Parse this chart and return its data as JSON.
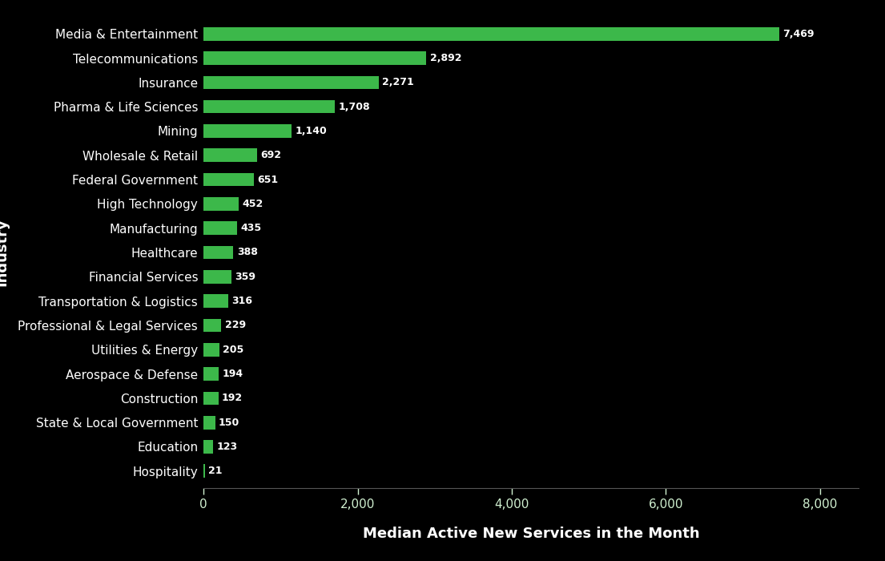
{
  "categories": [
    "Media & Entertainment",
    "Telecommunications",
    "Insurance",
    "Pharma & Life Sciences",
    "Mining",
    "Wholesale & Retail",
    "Federal Government",
    "High Technology",
    "Manufacturing",
    "Healthcare",
    "Financial Services",
    "Transportation & Logistics",
    "Professional & Legal Services",
    "Utilities & Energy",
    "Aerospace & Defense",
    "Construction",
    "State & Local Government",
    "Education",
    "Hospitality"
  ],
  "values": [
    7469,
    2892,
    2271,
    1708,
    1140,
    692,
    651,
    452,
    435,
    388,
    359,
    316,
    229,
    205,
    194,
    192,
    150,
    123,
    21
  ],
  "bar_color": "#3cb84a",
  "background_color": "#000000",
  "text_color": "#ffffff",
  "tick_text_color": "#d0f0d0",
  "title": "Median Active New Services in the Month",
  "ylabel": "Industry",
  "xlim": [
    0,
    8500
  ],
  "xticks": [
    0,
    2000,
    4000,
    6000,
    8000
  ],
  "xtick_labels": [
    "0",
    "2,000",
    "4,000",
    "6,000",
    "8,000"
  ],
  "title_fontsize": 13,
  "label_fontsize": 11,
  "tick_fontsize": 11,
  "ylabel_fontsize": 13,
  "bar_label_fontsize": 9,
  "bar_height": 0.55
}
